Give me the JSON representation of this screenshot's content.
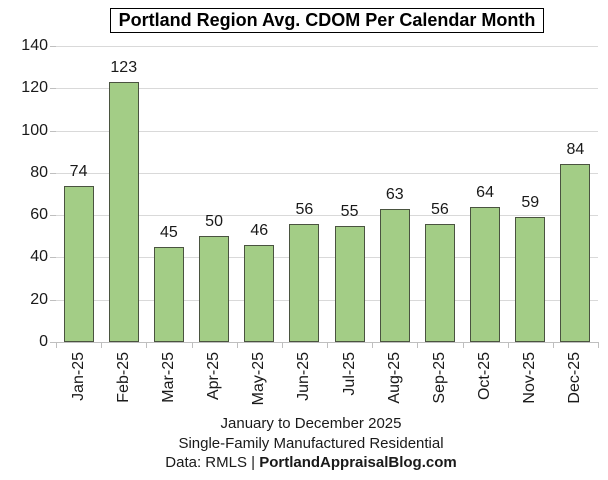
{
  "chart_data": {
    "type": "bar",
    "title": "Portland Region Avg. CDOM Per Calendar Month",
    "categories": [
      "Jan-25",
      "Feb-25",
      "Mar-25",
      "Apr-25",
      "May-25",
      "Jun-25",
      "Jul-25",
      "Aug-25",
      "Sep-25",
      "Oct-25",
      "Nov-25",
      "Dec-25"
    ],
    "values": [
      74,
      123,
      45,
      50,
      46,
      56,
      55,
      63,
      56,
      64,
      59,
      84
    ],
    "xlabel": "",
    "ylabel": "",
    "ylim": [
      0,
      140
    ],
    "yticks": [
      0,
      20,
      40,
      60,
      80,
      100,
      120,
      140
    ],
    "grid": true,
    "legend": false,
    "data_labels": true,
    "colors": {
      "bar_fill": "#a3cd86",
      "bar_border": "#4a5340",
      "gridline": "#d9d9d9",
      "axis": "#bfbfbf",
      "text": "#1a1a1a",
      "title_border": "#000000"
    }
  },
  "footer": {
    "line1": "January to December 2025",
    "line2": "Single-Family Manufactured Residential",
    "line3_prefix": "Data: RMLS | ",
    "line3_bold": "PortlandAppraisalBlog.com"
  }
}
